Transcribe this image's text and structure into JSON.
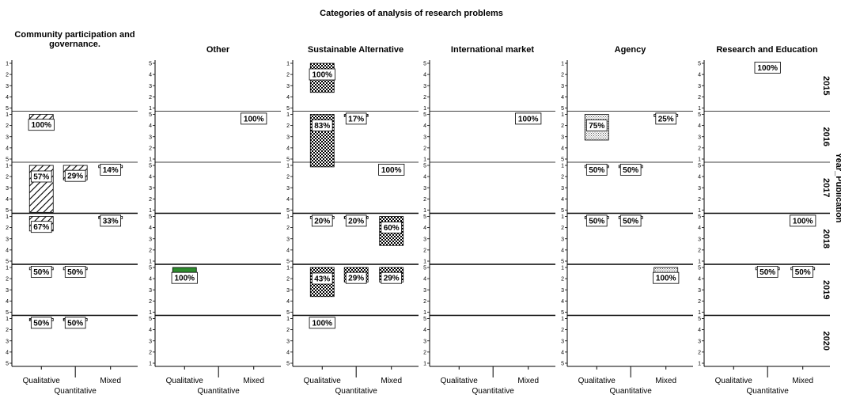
{
  "chart_data": {
    "type": "bar",
    "title": "Categories of analysis of research problems",
    "panels": [
      {
        "title_lines": [
          "Community participation and",
          "governance."
        ],
        "y_ticks": [
          "1",
          "2",
          "3",
          "4",
          "5"
        ]
      },
      {
        "title_lines": [
          "Other"
        ],
        "y_ticks": [
          "5",
          "4",
          "3",
          "2",
          "1"
        ]
      },
      {
        "title_lines": [
          "Sustainable Alternative"
        ],
        "y_ticks": [
          "1",
          "2",
          "3",
          "4",
          "5"
        ]
      },
      {
        "title_lines": [
          "International market"
        ],
        "y_ticks": [
          "5",
          "4",
          "3",
          "2",
          "1"
        ]
      },
      {
        "title_lines": [
          "Agency"
        ],
        "y_ticks": [
          "1",
          "2",
          "3",
          "4",
          "5"
        ]
      },
      {
        "title_lines": [
          "Research and Education"
        ],
        "y_ticks": [
          "5",
          "4",
          "3",
          "2",
          "1"
        ]
      }
    ],
    "rows": [
      "2015",
      "2016",
      "2017",
      "2018",
      "2019",
      "2020"
    ],
    "row_axis_label": "Year_Publication",
    "x_categories": [
      "Qualitative",
      "Quantitative",
      "Mixed"
    ],
    "value_unit": "%",
    "bars": [
      {
        "panel": 0,
        "row": 1,
        "cat": 0,
        "value": 1.3,
        "label": "100%",
        "pattern": "hatch-back"
      },
      {
        "panel": 0,
        "row": 2,
        "cat": 0,
        "value": 4.2,
        "label": "57%",
        "pattern": "hatch-back"
      },
      {
        "panel": 0,
        "row": 2,
        "cat": 1,
        "value": 1.3,
        "label": "29%",
        "pattern": "hatch-back"
      },
      {
        "panel": 0,
        "row": 2,
        "cat": 2,
        "value": 0.2,
        "label": "14%",
        "pattern": "hatch-back"
      },
      {
        "panel": 0,
        "row": 3,
        "cat": 0,
        "value": 1.3,
        "label": "67%",
        "pattern": "hatch-back"
      },
      {
        "panel": 0,
        "row": 3,
        "cat": 2,
        "value": 0.2,
        "label": "33%",
        "pattern": "hatch-back"
      },
      {
        "panel": 0,
        "row": 4,
        "cat": 0,
        "value": 0.2,
        "label": "50%",
        "pattern": "hatch-back"
      },
      {
        "panel": 0,
        "row": 4,
        "cat": 1,
        "value": 0.2,
        "label": "50%",
        "pattern": "hatch-back"
      },
      {
        "panel": 0,
        "row": 5,
        "cat": 0,
        "value": 0.2,
        "label": "50%",
        "pattern": "hatch-back"
      },
      {
        "panel": 0,
        "row": 5,
        "cat": 1,
        "value": 0.2,
        "label": "50%",
        "pattern": "hatch-back"
      },
      {
        "panel": 1,
        "row": 1,
        "cat": 2,
        "value": 0.2,
        "label": "100%",
        "pattern": "green"
      },
      {
        "panel": 1,
        "row": 4,
        "cat": 0,
        "value": 1.3,
        "label": "100%",
        "pattern": "green"
      },
      {
        "panel": 2,
        "row": 0,
        "cat": 0,
        "value": 2.6,
        "label": "100%",
        "pattern": "cross"
      },
      {
        "panel": 2,
        "row": 1,
        "cat": 0,
        "value": 4.7,
        "label": "83%",
        "pattern": "cross"
      },
      {
        "panel": 2,
        "row": 1,
        "cat": 1,
        "value": 0.2,
        "label": "17%",
        "pattern": "cross"
      },
      {
        "panel": 2,
        "row": 2,
        "cat": 2,
        "value": 0.2,
        "label": "100%",
        "pattern": "cross"
      },
      {
        "panel": 2,
        "row": 3,
        "cat": 0,
        "value": 0.2,
        "label": "20%",
        "pattern": "cross"
      },
      {
        "panel": 2,
        "row": 3,
        "cat": 1,
        "value": 0.2,
        "label": "20%",
        "pattern": "cross"
      },
      {
        "panel": 2,
        "row": 3,
        "cat": 2,
        "value": 2.6,
        "label": "60%",
        "pattern": "cross"
      },
      {
        "panel": 2,
        "row": 4,
        "cat": 0,
        "value": 2.6,
        "label": "43%",
        "pattern": "cross"
      },
      {
        "panel": 2,
        "row": 4,
        "cat": 1,
        "value": 1.3,
        "label": "29%",
        "pattern": "cross"
      },
      {
        "panel": 2,
        "row": 4,
        "cat": 2,
        "value": 1.3,
        "label": "29%",
        "pattern": "cross"
      },
      {
        "panel": 2,
        "row": 5,
        "cat": 0,
        "value": 0.2,
        "label": "100%",
        "pattern": "cross"
      },
      {
        "panel": 3,
        "row": 1,
        "cat": 2,
        "value": 0.2,
        "label": "100%",
        "pattern": "dots"
      },
      {
        "panel": 4,
        "row": 1,
        "cat": 0,
        "value": 2.3,
        "label": "75%",
        "pattern": "dots"
      },
      {
        "panel": 4,
        "row": 1,
        "cat": 2,
        "value": 0.2,
        "label": "25%",
        "pattern": "dots"
      },
      {
        "panel": 4,
        "row": 2,
        "cat": 0,
        "value": 0.2,
        "label": "50%",
        "pattern": "dots"
      },
      {
        "panel": 4,
        "row": 2,
        "cat": 1,
        "value": 0.2,
        "label": "50%",
        "pattern": "dots"
      },
      {
        "panel": 4,
        "row": 3,
        "cat": 0,
        "value": 0.2,
        "label": "50%",
        "pattern": "dots"
      },
      {
        "panel": 4,
        "row": 3,
        "cat": 1,
        "value": 0.2,
        "label": "50%",
        "pattern": "dots"
      },
      {
        "panel": 4,
        "row": 4,
        "cat": 2,
        "value": 1.3,
        "label": "100%",
        "pattern": "dots"
      },
      {
        "panel": 5,
        "row": 0,
        "cat": 1,
        "value": 0.2,
        "label": "100%",
        "pattern": "plain"
      },
      {
        "panel": 5,
        "row": 3,
        "cat": 2,
        "value": 0.2,
        "label": "100%",
        "pattern": "plain"
      },
      {
        "panel": 5,
        "row": 4,
        "cat": 1,
        "value": 0.2,
        "label": "50%",
        "pattern": "plain"
      },
      {
        "panel": 5,
        "row": 4,
        "cat": 2,
        "value": 0.2,
        "label": "50%",
        "pattern": "plain"
      }
    ],
    "colors": {
      "axis": "#000000",
      "green": "#2e8b2e",
      "fill": "#ffffff"
    }
  }
}
